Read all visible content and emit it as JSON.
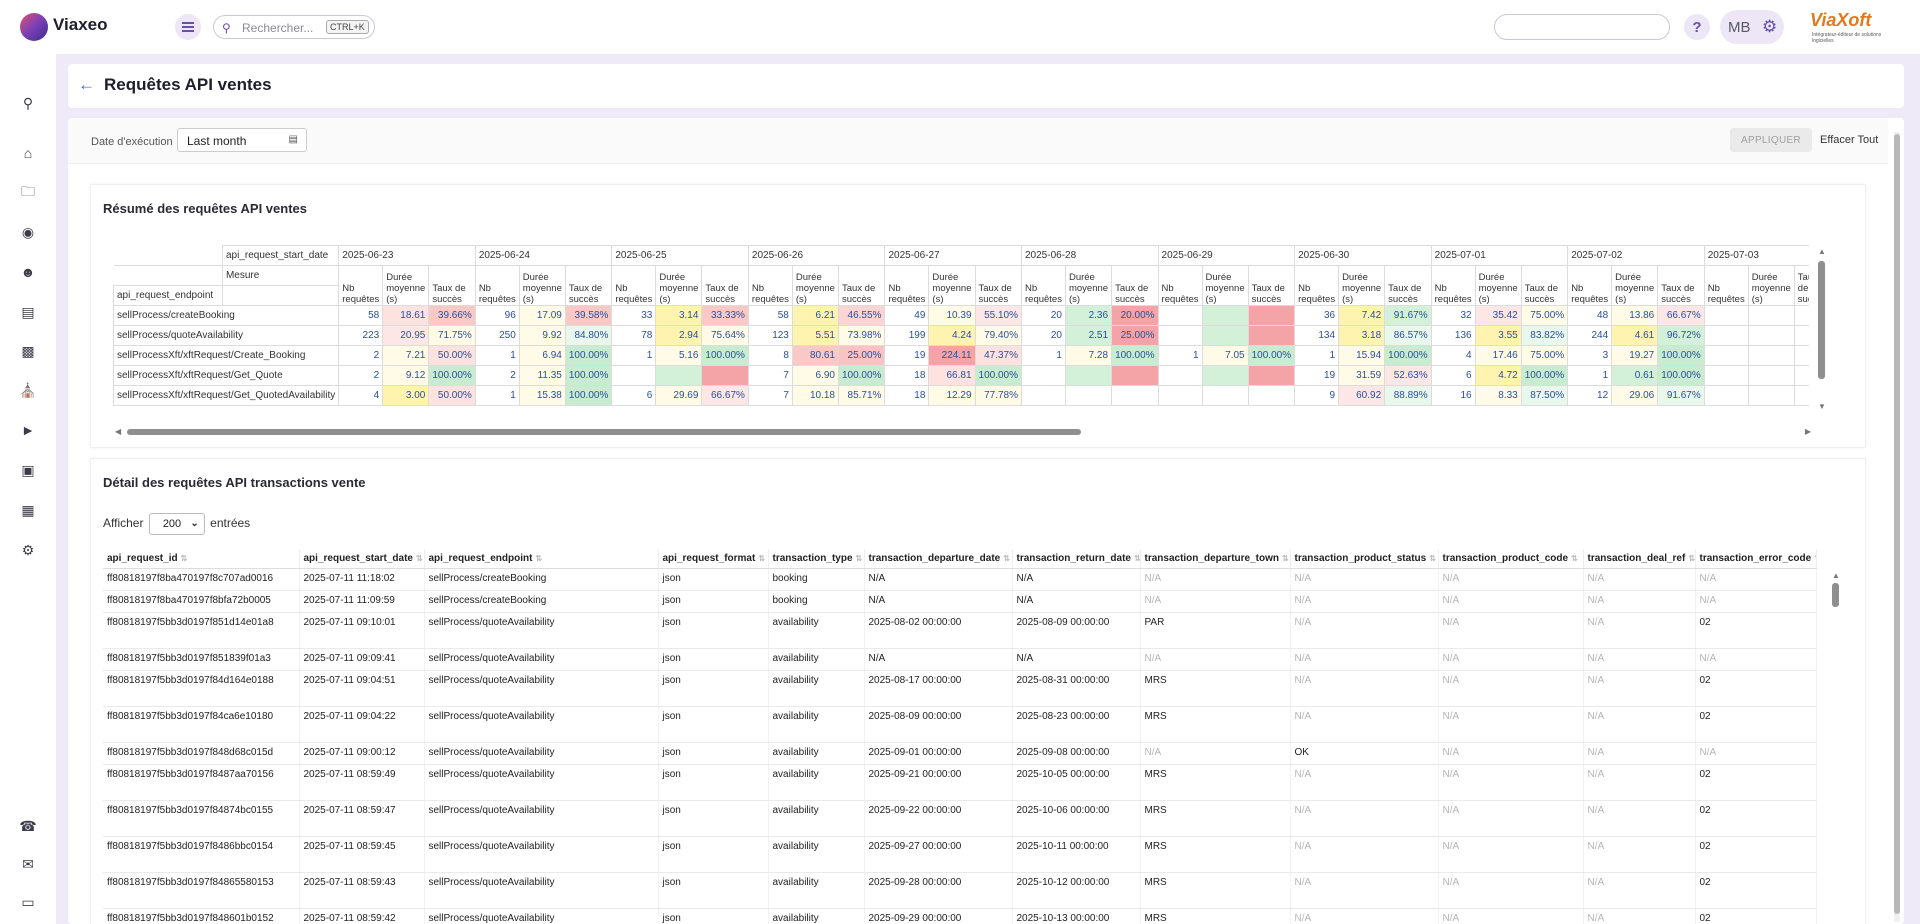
{
  "app": {
    "name": "Viaxeo",
    "search_placeholder": "Rechercher...",
    "search_shortcut": "CTRL+K",
    "help_label": "?",
    "user_initials": "MB",
    "brand_name": "ViaXoft",
    "brand_tagline": "Intégrateur-éditeur de solutions logicielles"
  },
  "sidebar": {
    "items": [
      "search-icon",
      "home-icon",
      "folder-icon",
      "palette-icon",
      "user-icon",
      "document-icon",
      "briefcase-icon",
      "bank-icon",
      "megaphone-icon",
      "archive-icon",
      "chart-icon",
      "settings-icon"
    ],
    "bottom_items": [
      "support-icon",
      "mail-icon",
      "screen-icon"
    ]
  },
  "page": {
    "title": "Requêtes API ventes"
  },
  "filters": {
    "date_label": "Date d'exécution",
    "date_value": "Last month",
    "apply_label": "APPLIQUER",
    "clear_label": "Effacer Tout"
  },
  "summary": {
    "title": "Résumé des requêtes API ventes",
    "row_field_label": "api_request_endpoint",
    "col_field_label": "api_request_start_date",
    "measure_label": "Mesure",
    "measures": [
      "Nb requêtes",
      "Durée moyenne (s)",
      "Taux de succès"
    ],
    "dates": [
      "2025-06-23",
      "2025-06-24",
      "2025-06-25",
      "2025-06-26",
      "2025-06-27",
      "2025-06-28",
      "2025-06-29",
      "2025-06-30",
      "2025-07-01",
      "2025-07-02",
      "2025-07-03"
    ],
    "rows": [
      {
        "endpoint": "sellProcess/createBooking",
        "cells": [
          [
            "58",
            "18.61",
            "39.66%"
          ],
          [
            "96",
            "17.09",
            "39.58%"
          ],
          [
            "33",
            "3.14",
            "33.33%"
          ],
          [
            "58",
            "6.21",
            "46.55%"
          ],
          [
            "49",
            "10.39",
            "55.10%"
          ],
          [
            "20",
            "2.36",
            "20.00%"
          ],
          [
            "",
            "",
            ""
          ],
          [
            "36",
            "7.42",
            "91.67%"
          ],
          [
            "32",
            "35.42",
            "75.00%"
          ],
          [
            "48",
            "13.86",
            "66.67%"
          ],
          [
            "",
            "",
            ""
          ]
        ]
      },
      {
        "endpoint": "sellProcess/quoteAvailability",
        "cells": [
          [
            "223",
            "20.95",
            "71.75%"
          ],
          [
            "250",
            "9.92",
            "84.80%"
          ],
          [
            "78",
            "2.94",
            "75.64%"
          ],
          [
            "123",
            "5.51",
            "73.98%"
          ],
          [
            "199",
            "4.24",
            "79.40%"
          ],
          [
            "20",
            "2.51",
            "25.00%"
          ],
          [
            "",
            "",
            ""
          ],
          [
            "134",
            "3.18",
            "86.57%"
          ],
          [
            "136",
            "3.55",
            "83.82%"
          ],
          [
            "244",
            "4.61",
            "96.72%"
          ],
          [
            "",
            "",
            ""
          ]
        ]
      },
      {
        "endpoint": "sellProcessXft/xftRequest/Create_Booking",
        "cells": [
          [
            "2",
            "7.21",
            "50.00%"
          ],
          [
            "1",
            "6.94",
            "100.00%"
          ],
          [
            "1",
            "5.16",
            "100.00%"
          ],
          [
            "8",
            "80.61",
            "25.00%"
          ],
          [
            "19",
            "224.11",
            "47.37%"
          ],
          [
            "1",
            "7.28",
            "100.00%"
          ],
          [
            "1",
            "7.05",
            "100.00%"
          ],
          [
            "1",
            "15.94",
            "100.00%"
          ],
          [
            "4",
            "17.46",
            "75.00%"
          ],
          [
            "3",
            "19.27",
            "100.00%"
          ],
          [
            "",
            "",
            ""
          ]
        ]
      },
      {
        "endpoint": "sellProcessXft/xftRequest/Get_Quote",
        "cells": [
          [
            "2",
            "9.12",
            "100.00%"
          ],
          [
            "2",
            "11.35",
            "100.00%"
          ],
          [
            "",
            "",
            ""
          ],
          [
            "7",
            "6.90",
            "100.00%"
          ],
          [
            "18",
            "66.81",
            "100.00%"
          ],
          [
            "",
            "",
            ""
          ],
          [
            "",
            "",
            ""
          ],
          [
            "19",
            "31.59",
            "52.63%"
          ],
          [
            "6",
            "4.72",
            "100.00%"
          ],
          [
            "1",
            "0.61",
            "100.00%"
          ],
          [
            "",
            "",
            ""
          ]
        ]
      },
      {
        "endpoint": "sellProcessXft/xftRequest/Get_QuotedAvailability",
        "cells": [
          [
            "4",
            "3.00",
            "50.00%"
          ],
          [
            "1",
            "15.38",
            "100.00%"
          ],
          [
            "6",
            "29.69",
            "66.67%"
          ],
          [
            "7",
            "10.18",
            "85.71%"
          ],
          [
            "18",
            "12.29",
            "77.78%"
          ],
          [
            "",
            "",
            ""
          ],
          [
            "",
            "",
            ""
          ],
          [
            "9",
            "60.92",
            "88.89%"
          ],
          [
            "16",
            "8.33",
            "87.50%"
          ],
          [
            "12",
            "29.06",
            "91.67%"
          ],
          [
            "",
            "",
            ""
          ]
        ]
      }
    ],
    "cell_colors": [
      [
        [
          "",
          "#fde2e0",
          "#fac9c6"
        ],
        [
          "",
          "#fffbe6",
          "#fac9c6"
        ],
        [
          "",
          "#fff3b0",
          "#fac9c6"
        ],
        [
          "",
          "#fff3b0",
          "#fcd4d4"
        ],
        [
          "",
          "#fffbe6",
          "#fde7e6"
        ],
        [
          "",
          "#d2f1d8",
          "#f4a3a6"
        ],
        [
          "",
          "#d2f1d8",
          "#f4a3a6"
        ],
        [
          "",
          "#fff3b0",
          "#d2f1d8"
        ],
        [
          "",
          "#fde7e6",
          "#fffbe6"
        ],
        [
          "",
          "#fffbe6",
          "#fde7e6"
        ],
        [
          "",
          "",
          ""
        ]
      ],
      [
        [
          "",
          "#fde7e6",
          "#fffbe6"
        ],
        [
          "",
          "#fffbe6",
          "#e9f8ec"
        ],
        [
          "",
          "#fff3b0",
          "#fffbe6"
        ],
        [
          "",
          "#fff3b0",
          "#fffbe6"
        ],
        [
          "",
          "#fff3b0",
          "#fffbe6"
        ],
        [
          "",
          "#d2f1d8",
          "#f4a3a6"
        ],
        [
          "",
          "#d2f1d8",
          "#f4a3a6"
        ],
        [
          "",
          "#fff3b0",
          "#e9f8ec"
        ],
        [
          "",
          "#fff3b0",
          "#e9f8ec"
        ],
        [
          "",
          "#fff3b0",
          "#d2f1d8"
        ],
        [
          "",
          "",
          ""
        ]
      ],
      [
        [
          "",
          "#fffbe6",
          "#fde2e0"
        ],
        [
          "",
          "#fffbe6",
          "#c7eccf"
        ],
        [
          "",
          "#fffbe6",
          "#c7eccf"
        ],
        [
          "",
          "#fac9c6",
          "#f9c3c3"
        ],
        [
          "",
          "#f4a3a6",
          "#fde2e0"
        ],
        [
          "",
          "#fffbe6",
          "#c7eccf"
        ],
        [
          "",
          "#fffbe6",
          "#c7eccf"
        ],
        [
          "",
          "#fffbe6",
          "#c7eccf"
        ],
        [
          "",
          "#fffbe6",
          "#fffbe6"
        ],
        [
          "",
          "#fffbe6",
          "#c7eccf"
        ],
        [
          "",
          "",
          ""
        ]
      ],
      [
        [
          "",
          "#fffbe6",
          "#c7eccf"
        ],
        [
          "",
          "#fffbe6",
          "#c7eccf"
        ],
        [
          "",
          "#d2f1d8",
          "#f4a3a6"
        ],
        [
          "",
          "#fffbe6",
          "#c7eccf"
        ],
        [
          "",
          "#fde2e0",
          "#c7eccf"
        ],
        [
          "",
          "#d2f1d8",
          "#f4a3a6"
        ],
        [
          "",
          "#d2f1d8",
          "#f4a3a6"
        ],
        [
          "",
          "#fffbe6",
          "#fde7e6"
        ],
        [
          "",
          "#fff3b0",
          "#c7eccf"
        ],
        [
          "",
          "#d2f1d8",
          "#c7eccf"
        ],
        [
          "",
          "",
          ""
        ]
      ],
      [
        [
          "",
          "#fff3b0",
          "#fde2e0"
        ],
        [
          "",
          "#fffbe6",
          "#c7eccf"
        ],
        [
          "",
          "#fffbe6",
          "#fde7e6"
        ],
        [
          "",
          "#fffbe6",
          "#fffbe6"
        ],
        [
          "",
          "#fffbe6",
          "#fffbe6"
        ],
        [
          "",
          "",
          ""
        ],
        [
          "",
          "",
          ""
        ],
        [
          "",
          "#fde7e6",
          "#e9f8ec"
        ],
        [
          "",
          "#fffbe6",
          "#e9f8ec"
        ],
        [
          "",
          "#fffbe6",
          "#e9f8ec"
        ],
        [
          "",
          "",
          ""
        ]
      ]
    ]
  },
  "detail": {
    "title": "Détail des requêtes API transactions vente",
    "show_label": "Afficher",
    "show_value": "200",
    "entries_label": "entrées",
    "columns": [
      "api_request_id",
      "api_request_start_date",
      "api_request_endpoint",
      "api_request_format",
      "transaction_type",
      "transaction_departure_date",
      "transaction_return_date",
      "transaction_departure_town",
      "transaction_product_status",
      "transaction_product_code",
      "transaction_deal_ref",
      "transaction_error_code"
    ],
    "rows": [
      [
        "ff80818197f8ba470197f8c707ad0016",
        "2025-07-11 11:18:02",
        "sellProcess/createBooking",
        "json",
        "booking",
        "N/A",
        "N/A",
        "N/A",
        "N/A",
        "N/A",
        "N/A",
        "N/A"
      ],
      [
        "ff80818197f8ba470197f8bfa72b0005",
        "2025-07-11 11:09:59",
        "sellProcess/createBooking",
        "json",
        "booking",
        "N/A",
        "N/A",
        "N/A",
        "N/A",
        "N/A",
        "N/A",
        "N/A"
      ],
      [
        "ff80818197f5bb3d0197f851d14e01a8",
        "2025-07-11 09:10:01",
        "sellProcess/quoteAvailability",
        "json",
        "availability",
        "2025-08-02 00:00:00",
        "2025-08-09 00:00:00",
        "PAR",
        "N/A",
        "N/A",
        "N/A",
        "02"
      ],
      [
        "ff80818197f5bb3d0197f851839f01a3",
        "2025-07-11 09:09:41",
        "sellProcess/quoteAvailability",
        "json",
        "availability",
        "N/A",
        "N/A",
        "N/A",
        "N/A",
        "N/A",
        "N/A",
        "N/A"
      ],
      [
        "ff80818197f5bb3d0197f84d164e0188",
        "2025-07-11 09:04:51",
        "sellProcess/quoteAvailability",
        "json",
        "availability",
        "2025-08-17 00:00:00",
        "2025-08-31 00:00:00",
        "MRS",
        "N/A",
        "N/A",
        "N/A",
        "02"
      ],
      [
        "ff80818197f5bb3d0197f84ca6e10180",
        "2025-07-11 09:04:22",
        "sellProcess/quoteAvailability",
        "json",
        "availability",
        "2025-08-09 00:00:00",
        "2025-08-23 00:00:00",
        "MRS",
        "N/A",
        "N/A",
        "N/A",
        "02"
      ],
      [
        "ff80818197f5bb3d0197f848d68c015d",
        "2025-07-11 09:00:12",
        "sellProcess/quoteAvailability",
        "json",
        "availability",
        "2025-09-01 00:00:00",
        "2025-09-08 00:00:00",
        "N/A",
        "OK",
        "N/A",
        "N/A",
        "N/A"
      ],
      [
        "ff80818197f5bb3d0197f8487aa70156",
        "2025-07-11 08:59:49",
        "sellProcess/quoteAvailability",
        "json",
        "availability",
        "2025-09-21 00:00:00",
        "2025-10-05 00:00:00",
        "MRS",
        "N/A",
        "N/A",
        "N/A",
        "02"
      ],
      [
        "ff80818197f5bb3d0197f84874bc0155",
        "2025-07-11 08:59:47",
        "sellProcess/quoteAvailability",
        "json",
        "availability",
        "2025-09-22 00:00:00",
        "2025-10-06 00:00:00",
        "MRS",
        "N/A",
        "N/A",
        "N/A",
        "02"
      ],
      [
        "ff80818197f5bb3d0197f8486bbc0154",
        "2025-07-11 08:59:45",
        "sellProcess/quoteAvailability",
        "json",
        "availability",
        "2025-09-27 00:00:00",
        "2025-10-11 00:00:00",
        "MRS",
        "N/A",
        "N/A",
        "N/A",
        "02"
      ],
      [
        "ff80818197f5bb3d0197f84865580153",
        "2025-07-11 08:59:43",
        "sellProcess/quoteAvailability",
        "json",
        "availability",
        "2025-09-28 00:00:00",
        "2025-10-12 00:00:00",
        "MRS",
        "N/A",
        "N/A",
        "N/A",
        "02"
      ],
      [
        "ff80818197f5bb3d0197f848601b0152",
        "2025-07-11 08:59:42",
        "sellProcess/quoteAvailability",
        "json",
        "availability",
        "2025-09-29 00:00:00",
        "2025-10-13 00:00:00",
        "MRS",
        "N/A",
        "N/A",
        "N/A",
        "02"
      ]
    ]
  }
}
